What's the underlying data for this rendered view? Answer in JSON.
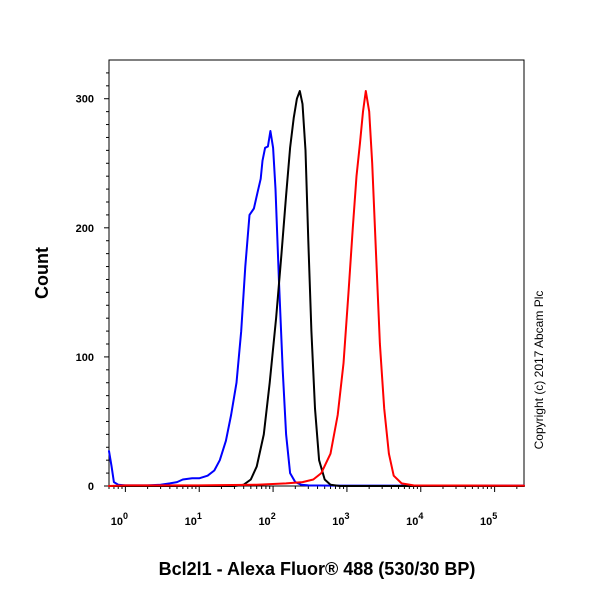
{
  "chart_data": {
    "type": "line",
    "xlabel": "Bcl2l1 - Alexa Fluor® 488 (530/30 BP)",
    "ylabel": "Count",
    "x_scale": "log",
    "xlim": [
      0.6,
      250000
    ],
    "ylim": [
      0,
      330
    ],
    "x_ticks": [
      {
        "base": "10",
        "exp": "0",
        "value": 1
      },
      {
        "base": "10",
        "exp": "1",
        "value": 10
      },
      {
        "base": "10",
        "exp": "2",
        "value": 100
      },
      {
        "base": "10",
        "exp": "3",
        "value": 1000
      },
      {
        "base": "10",
        "exp": "4",
        "value": 10000
      },
      {
        "base": "10",
        "exp": "5",
        "value": 100000
      }
    ],
    "y_ticks": [
      {
        "label": "0",
        "value": 0
      },
      {
        "label": "100",
        "value": 100
      },
      {
        "label": "200",
        "value": 200
      },
      {
        "label": "300",
        "value": 300
      }
    ],
    "grid": false,
    "legend": "none",
    "annotation": "Copyright (c) 2017 Abcam Plc",
    "series": [
      {
        "color": "#0000ff",
        "points": [
          [
            0.6,
            27
          ],
          [
            0.65,
            15
          ],
          [
            0.7,
            3
          ],
          [
            0.8,
            1
          ],
          [
            1,
            0.5
          ],
          [
            2,
            0.5
          ],
          [
            3,
            1
          ],
          [
            4,
            2
          ],
          [
            5,
            3
          ],
          [
            6,
            5
          ],
          [
            8,
            6
          ],
          [
            10,
            6
          ],
          [
            13,
            8
          ],
          [
            16,
            12
          ],
          [
            19,
            20
          ],
          [
            23,
            35
          ],
          [
            27,
            55
          ],
          [
            32,
            80
          ],
          [
            37,
            120
          ],
          [
            42,
            170
          ],
          [
            48,
            210
          ],
          [
            55,
            215
          ],
          [
            62,
            228
          ],
          [
            68,
            238
          ],
          [
            72,
            252
          ],
          [
            78,
            262
          ],
          [
            85,
            263
          ],
          [
            92,
            275
          ],
          [
            100,
            262
          ],
          [
            108,
            230
          ],
          [
            120,
            160
          ],
          [
            135,
            90
          ],
          [
            150,
            40
          ],
          [
            170,
            10
          ],
          [
            200,
            3
          ],
          [
            240,
            1
          ],
          [
            300,
            0.5
          ],
          [
            600,
            0.3
          ],
          [
            3000,
            0.3
          ],
          [
            250000,
            0.3
          ]
        ]
      },
      {
        "color": "#000000",
        "points": [
          [
            0.6,
            0
          ],
          [
            30,
            0
          ],
          [
            40,
            1
          ],
          [
            50,
            5
          ],
          [
            60,
            15
          ],
          [
            75,
            40
          ],
          [
            90,
            80
          ],
          [
            110,
            130
          ],
          [
            130,
            180
          ],
          [
            150,
            225
          ],
          [
            170,
            262
          ],
          [
            190,
            285
          ],
          [
            210,
            300
          ],
          [
            230,
            306
          ],
          [
            250,
            296
          ],
          [
            275,
            260
          ],
          [
            300,
            190
          ],
          [
            330,
            120
          ],
          [
            370,
            60
          ],
          [
            420,
            20
          ],
          [
            500,
            5
          ],
          [
            600,
            1
          ],
          [
            800,
            0
          ],
          [
            250000,
            0
          ]
        ]
      },
      {
        "color": "#ff0000",
        "points": [
          [
            0.6,
            0
          ],
          [
            1,
            0.5
          ],
          [
            10,
            0.5
          ],
          [
            60,
            1
          ],
          [
            150,
            2
          ],
          [
            250,
            3
          ],
          [
            350,
            5
          ],
          [
            450,
            10
          ],
          [
            600,
            25
          ],
          [
            750,
            55
          ],
          [
            900,
            95
          ],
          [
            1050,
            150
          ],
          [
            1200,
            200
          ],
          [
            1350,
            240
          ],
          [
            1500,
            265
          ],
          [
            1650,
            290
          ],
          [
            1800,
            306
          ],
          [
            2000,
            290
          ],
          [
            2200,
            250
          ],
          [
            2500,
            175
          ],
          [
            2800,
            110
          ],
          [
            3200,
            60
          ],
          [
            3700,
            25
          ],
          [
            4300,
            8
          ],
          [
            5500,
            2
          ],
          [
            8000,
            0.5
          ],
          [
            250000,
            0.3
          ]
        ]
      }
    ]
  }
}
